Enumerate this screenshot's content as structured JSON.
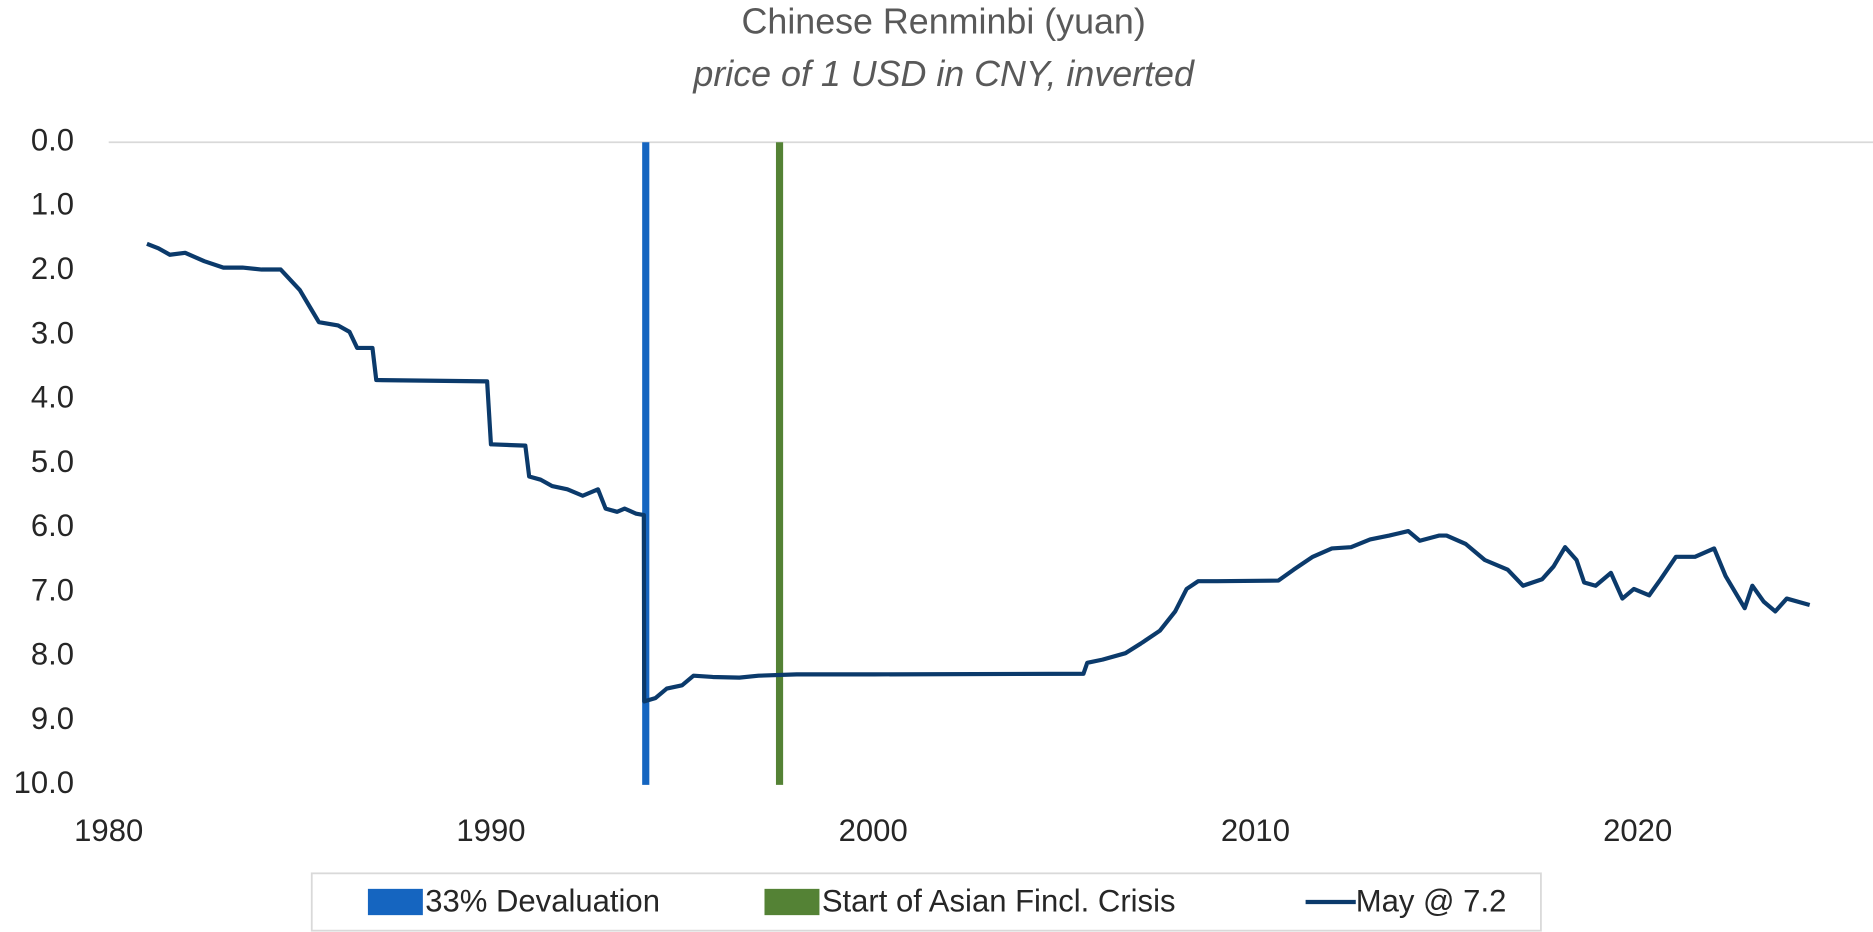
{
  "chart_data": {
    "type": "line",
    "title": "Chinese Renminbi (yuan)",
    "subtitle": "price of 1 USD in CNY, inverted",
    "xlim": [
      1980,
      2026
    ],
    "xticks": [
      1980,
      1990,
      2000,
      2010,
      2020
    ],
    "ylim": [
      0,
      10
    ],
    "y_inverted": true,
    "yticks": [
      {
        "value": 0,
        "label": "0.0"
      },
      {
        "value": 1,
        "label": "1.0"
      },
      {
        "value": 2,
        "label": "2.0"
      },
      {
        "value": 3,
        "label": "3.0"
      },
      {
        "value": 4,
        "label": "4.0"
      },
      {
        "value": 5,
        "label": "5.0"
      },
      {
        "value": 6,
        "label": "6.0"
      },
      {
        "value": 7,
        "label": "7.0"
      },
      {
        "value": 8,
        "label": "8.0"
      },
      {
        "value": 9,
        "label": "9.0"
      },
      {
        "value": 10,
        "label": "10.0"
      }
    ],
    "legend": "bottom",
    "series": [
      {
        "name": "33% Devaluation",
        "color": "#1565c0",
        "x": [
          1994.05,
          1994.05
        ],
        "values": [
          0,
          10
        ]
      },
      {
        "name": "Start of Asian Fincl. Crisis",
        "color": "#548235",
        "x": [
          1997.55,
          1997.55
        ],
        "values": [
          0,
          10
        ]
      },
      {
        "name": "May @ 7.2",
        "color": "#0b3a6b",
        "x": [
          1981.0,
          1981.3,
          1981.6,
          1982.0,
          1982.5,
          1983.0,
          1983.5,
          1984.0,
          1984.5,
          1985.0,
          1985.3,
          1985.5,
          1986.0,
          1986.3,
          1986.5,
          1986.9,
          1987.0,
          1989.9,
          1990.0,
          1990.9,
          1991.0,
          1991.3,
          1991.6,
          1992.0,
          1992.4,
          1992.8,
          1993.0,
          1993.3,
          1993.5,
          1993.8,
          1994.0,
          1994.01,
          1994.3,
          1994.6,
          1995.0,
          1995.3,
          1995.8,
          1996.5,
          1997.0,
          1998.0,
          2000.0,
          2005.5,
          2005.6,
          2006.0,
          2006.6,
          2007.0,
          2007.5,
          2007.9,
          2008.2,
          2008.5,
          2009.0,
          2010.6,
          2011.0,
          2011.5,
          2012.0,
          2012.5,
          2013.0,
          2013.5,
          2014.0,
          2014.3,
          2014.8,
          2015.0,
          2015.5,
          2016.0,
          2016.6,
          2017.0,
          2017.5,
          2017.8,
          2018.1,
          2018.4,
          2018.6,
          2018.9,
          2019.3,
          2019.6,
          2019.9,
          2020.3,
          2020.6,
          2021.0,
          2021.5,
          2022.0,
          2022.3,
          2022.8,
          2023.0,
          2023.3,
          2023.6,
          2023.9,
          2024.5
        ],
        "values": [
          1.58,
          1.65,
          1.75,
          1.72,
          1.85,
          1.95,
          1.95,
          1.98,
          1.98,
          2.3,
          2.6,
          2.8,
          2.85,
          2.95,
          3.2,
          3.2,
          3.7,
          3.72,
          4.7,
          4.72,
          5.2,
          5.25,
          5.35,
          5.4,
          5.5,
          5.4,
          5.7,
          5.75,
          5.7,
          5.78,
          5.8,
          8.7,
          8.65,
          8.5,
          8.45,
          8.3,
          8.32,
          8.33,
          8.3,
          8.28,
          8.28,
          8.27,
          8.1,
          8.05,
          7.95,
          7.8,
          7.6,
          7.3,
          6.95,
          6.83,
          6.83,
          6.82,
          6.65,
          6.45,
          6.32,
          6.3,
          6.18,
          6.12,
          6.05,
          6.2,
          6.12,
          6.12,
          6.25,
          6.5,
          6.65,
          6.9,
          6.8,
          6.6,
          6.3,
          6.5,
          6.85,
          6.9,
          6.7,
          7.1,
          6.95,
          7.05,
          6.8,
          6.45,
          6.45,
          6.32,
          6.75,
          7.25,
          6.9,
          7.15,
          7.3,
          7.1,
          7.2
        ]
      }
    ]
  }
}
